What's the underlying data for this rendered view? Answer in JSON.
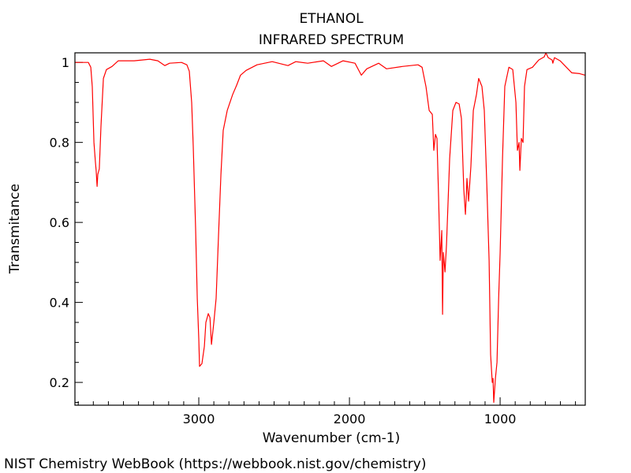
{
  "chart_data": {
    "type": "line",
    "title": "ETHANOL",
    "subtitle": "INFRARED SPECTRUM",
    "xlabel": "Wavenumber (cm-1)",
    "ylabel": "Transmitance",
    "xlim": [
      3822,
      435
    ],
    "ylim": [
      0.143,
      1.024
    ],
    "x_ticks": [
      3000,
      2000,
      1000
    ],
    "x_tick_labels": [
      "3000",
      "2000",
      "1000"
    ],
    "x_minor_step": 100,
    "y_ticks": [
      0.2,
      0.4,
      0.6,
      0.8,
      1
    ],
    "y_tick_labels": [
      "0.2",
      "0.4",
      "0.6",
      "0.8",
      "1"
    ],
    "y_minor_step": 0.05,
    "grid": false,
    "series_color": "#ff0000",
    "series": [
      {
        "name": "Ethanol IR",
        "points": [
          [
            3822,
            1.0
          ],
          [
            3733,
            1.0
          ],
          [
            3717,
            0.988
          ],
          [
            3707,
            0.939
          ],
          [
            3696,
            0.8
          ],
          [
            3686,
            0.75
          ],
          [
            3681,
            0.73
          ],
          [
            3675,
            0.69
          ],
          [
            3670,
            0.72
          ],
          [
            3660,
            0.734
          ],
          [
            3649,
            0.84
          ],
          [
            3633,
            0.96
          ],
          [
            3613,
            0.982
          ],
          [
            3576,
            0.99
          ],
          [
            3534,
            1.004
          ],
          [
            3429,
            1.004
          ],
          [
            3325,
            1.008
          ],
          [
            3272,
            1.004
          ],
          [
            3225,
            0.992
          ],
          [
            3194,
            0.998
          ],
          [
            3115,
            1.0
          ],
          [
            3079,
            0.994
          ],
          [
            3063,
            0.978
          ],
          [
            3047,
            0.9
          ],
          [
            3037,
            0.79
          ],
          [
            3021,
            0.584
          ],
          [
            3010,
            0.41
          ],
          [
            3000,
            0.31
          ],
          [
            2995,
            0.24
          ],
          [
            2979,
            0.247
          ],
          [
            2963,
            0.29
          ],
          [
            2953,
            0.35
          ],
          [
            2937,
            0.372
          ],
          [
            2926,
            0.362
          ],
          [
            2916,
            0.295
          ],
          [
            2900,
            0.35
          ],
          [
            2885,
            0.41
          ],
          [
            2869,
            0.565
          ],
          [
            2853,
            0.72
          ],
          [
            2838,
            0.83
          ],
          [
            2811,
            0.88
          ],
          [
            2775,
            0.92
          ],
          [
            2749,
            0.943
          ],
          [
            2723,
            0.968
          ],
          [
            2686,
            0.98
          ],
          [
            2613,
            0.994
          ],
          [
            2513,
            1.002
          ],
          [
            2408,
            0.992
          ],
          [
            2356,
            1.002
          ],
          [
            2277,
            0.998
          ],
          [
            2173,
            1.004
          ],
          [
            2120,
            0.99
          ],
          [
            2042,
            1.004
          ],
          [
            1963,
            0.998
          ],
          [
            1921,
            0.968
          ],
          [
            1885,
            0.984
          ],
          [
            1806,
            0.998
          ],
          [
            1754,
            0.984
          ],
          [
            1649,
            0.99
          ],
          [
            1545,
            0.994
          ],
          [
            1518,
            0.988
          ],
          [
            1492,
            0.939
          ],
          [
            1471,
            0.88
          ],
          [
            1450,
            0.87
          ],
          [
            1440,
            0.78
          ],
          [
            1429,
            0.82
          ],
          [
            1419,
            0.81
          ],
          [
            1408,
            0.66
          ],
          [
            1398,
            0.505
          ],
          [
            1387,
            0.58
          ],
          [
            1382,
            0.37
          ],
          [
            1377,
            0.525
          ],
          [
            1366,
            0.476
          ],
          [
            1356,
            0.545
          ],
          [
            1335,
            0.76
          ],
          [
            1314,
            0.88
          ],
          [
            1293,
            0.9
          ],
          [
            1272,
            0.896
          ],
          [
            1257,
            0.86
          ],
          [
            1241,
            0.683
          ],
          [
            1230,
            0.62
          ],
          [
            1225,
            0.66
          ],
          [
            1220,
            0.71
          ],
          [
            1209,
            0.653
          ],
          [
            1194,
            0.74
          ],
          [
            1178,
            0.88
          ],
          [
            1157,
            0.92
          ],
          [
            1142,
            0.96
          ],
          [
            1121,
            0.94
          ],
          [
            1105,
            0.88
          ],
          [
            1089,
            0.7
          ],
          [
            1073,
            0.505
          ],
          [
            1063,
            0.27
          ],
          [
            1052,
            0.2
          ],
          [
            1047,
            0.21
          ],
          [
            1042,
            0.15
          ],
          [
            1031,
            0.21
          ],
          [
            1021,
            0.25
          ],
          [
            1010,
            0.41
          ],
          [
            1000,
            0.525
          ],
          [
            984,
            0.76
          ],
          [
            969,
            0.94
          ],
          [
            942,
            0.988
          ],
          [
            916,
            0.982
          ],
          [
            895,
            0.9
          ],
          [
            885,
            0.78
          ],
          [
            874,
            0.8
          ],
          [
            869,
            0.73
          ],
          [
            859,
            0.81
          ],
          [
            848,
            0.8
          ],
          [
            838,
            0.94
          ],
          [
            822,
            0.982
          ],
          [
            785,
            0.988
          ],
          [
            744,
            1.006
          ],
          [
            707,
            1.014
          ],
          [
            696,
            1.024
          ],
          [
            681,
            1.012
          ],
          [
            655,
            1.006
          ],
          [
            650,
            0.998
          ],
          [
            639,
            1.012
          ],
          [
            602,
            1.004
          ],
          [
            524,
            0.974
          ],
          [
            472,
            0.972
          ],
          [
            435,
            0.968
          ]
        ]
      }
    ],
    "footer": "NIST Chemistry WebBook (https://webbook.nist.gov/chemistry)"
  }
}
